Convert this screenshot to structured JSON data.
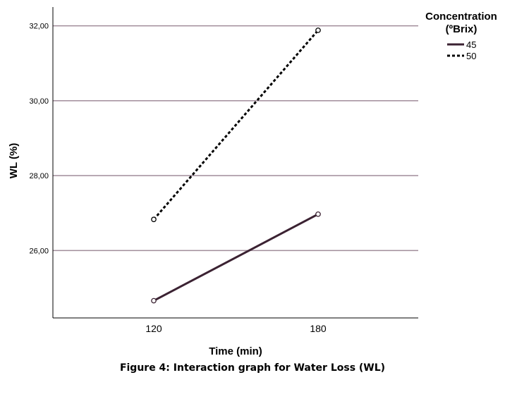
{
  "chart_data": {
    "type": "line",
    "xlabel": "Time (min)",
    "ylabel": "WL (%)",
    "categories": [
      "120",
      "180"
    ],
    "yticks": [
      "26,00",
      "28,00",
      "30,00",
      "32,00"
    ],
    "ytick_values": [
      26,
      28,
      30,
      32
    ],
    "ylim": [
      24.2,
      32.5
    ],
    "grid": true,
    "legend": {
      "title_line1": "Concentration",
      "title_line2": "(ºBrix)",
      "placement": "top-right"
    },
    "series": [
      {
        "name": "45",
        "values": [
          24.66,
          26.97
        ],
        "style": "solid",
        "color": "#3b2232"
      },
      {
        "name": "50",
        "values": [
          26.83,
          31.88
        ],
        "style": "dashed",
        "color": "#000000"
      }
    ],
    "gridline_color": "#a08c9a"
  },
  "caption": "Figure 4: Interaction graph for Water Loss (WL)"
}
